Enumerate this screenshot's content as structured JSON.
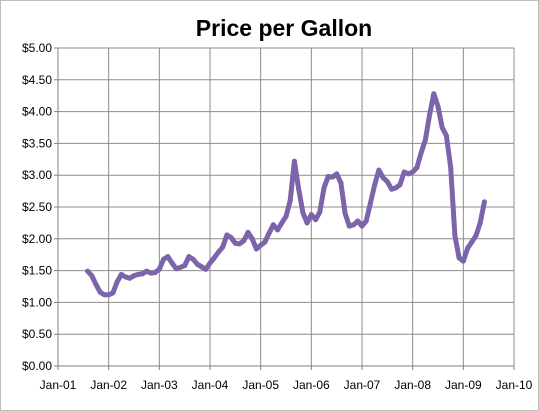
{
  "chart_data": {
    "type": "line",
    "title": "Price per Gallon",
    "xlabel": "",
    "ylabel": "",
    "x_tick_labels": [
      "Jan-01",
      "Jan-02",
      "Jan-03",
      "Jan-04",
      "Jan-05",
      "Jan-06",
      "Jan-07",
      "Jan-08",
      "Jan-09",
      "Jan-10"
    ],
    "y_tick_labels": [
      "$0.00",
      "$0.50",
      "$1.00",
      "$1.50",
      "$2.00",
      "$2.50",
      "$3.00",
      "$3.50",
      "$4.00",
      "$4.50",
      "$5.00"
    ],
    "xlim": [
      "2001-01",
      "2010-01"
    ],
    "ylim": [
      0,
      5
    ],
    "grid": true,
    "legend": "none",
    "colors": {
      "line": "#7b64aa",
      "grid": "#8c8c8c",
      "axis": "#808080"
    },
    "series": [
      {
        "x": [
          "2001-08",
          "2001-09",
          "2001-10",
          "2001-11",
          "2001-12",
          "2002-01",
          "2002-02",
          "2002-03",
          "2002-04",
          "2002-05",
          "2002-06",
          "2002-07",
          "2002-08",
          "2002-09",
          "2002-10",
          "2002-11",
          "2002-12",
          "2003-01",
          "2003-02",
          "2003-03",
          "2003-04",
          "2003-05",
          "2003-06",
          "2003-07",
          "2003-08",
          "2003-09",
          "2003-10",
          "2003-11",
          "2003-12",
          "2004-01",
          "2004-02",
          "2004-03",
          "2004-04",
          "2004-05",
          "2004-06",
          "2004-07",
          "2004-08",
          "2004-09",
          "2004-10",
          "2004-11",
          "2004-12",
          "2005-01",
          "2005-02",
          "2005-03",
          "2005-04",
          "2005-05",
          "2005-06",
          "2005-07",
          "2005-08",
          "2005-09",
          "2005-10",
          "2005-11",
          "2005-12",
          "2006-01",
          "2006-02",
          "2006-03",
          "2006-04",
          "2006-05",
          "2006-06",
          "2006-07",
          "2006-08",
          "2006-09",
          "2006-10",
          "2006-11",
          "2006-12",
          "2007-01",
          "2007-02",
          "2007-03",
          "2007-04",
          "2007-05",
          "2007-06",
          "2007-07",
          "2007-08",
          "2007-09",
          "2007-10",
          "2007-11",
          "2007-12",
          "2008-01",
          "2008-02",
          "2008-03",
          "2008-04",
          "2008-05",
          "2008-06",
          "2008-07",
          "2008-08",
          "2008-09",
          "2008-10",
          "2008-11",
          "2008-12",
          "2009-01",
          "2009-02",
          "2009-03",
          "2009-04",
          "2009-05",
          "2009-06"
        ],
        "values": [
          1.49,
          1.42,
          1.28,
          1.16,
          1.12,
          1.12,
          1.15,
          1.32,
          1.44,
          1.4,
          1.38,
          1.42,
          1.44,
          1.45,
          1.49,
          1.46,
          1.47,
          1.52,
          1.68,
          1.72,
          1.62,
          1.53,
          1.55,
          1.58,
          1.72,
          1.68,
          1.6,
          1.56,
          1.52,
          1.62,
          1.7,
          1.79,
          1.87,
          2.06,
          2.02,
          1.93,
          1.92,
          1.97,
          2.1,
          2.0,
          1.84,
          1.9,
          1.95,
          2.09,
          2.22,
          2.14,
          2.25,
          2.35,
          2.6,
          3.22,
          2.78,
          2.41,
          2.25,
          2.38,
          2.3,
          2.42,
          2.8,
          2.98,
          2.97,
          3.02,
          2.88,
          2.4,
          2.2,
          2.22,
          2.28,
          2.2,
          2.28,
          2.56,
          2.85,
          3.08,
          2.96,
          2.9,
          2.78,
          2.8,
          2.85,
          3.05,
          3.02,
          3.05,
          3.12,
          3.35,
          3.55,
          3.95,
          4.28,
          4.08,
          3.75,
          3.62,
          3.12,
          2.05,
          1.7,
          1.65,
          1.85,
          1.95,
          2.05,
          2.25,
          2.58
        ]
      }
    ]
  }
}
